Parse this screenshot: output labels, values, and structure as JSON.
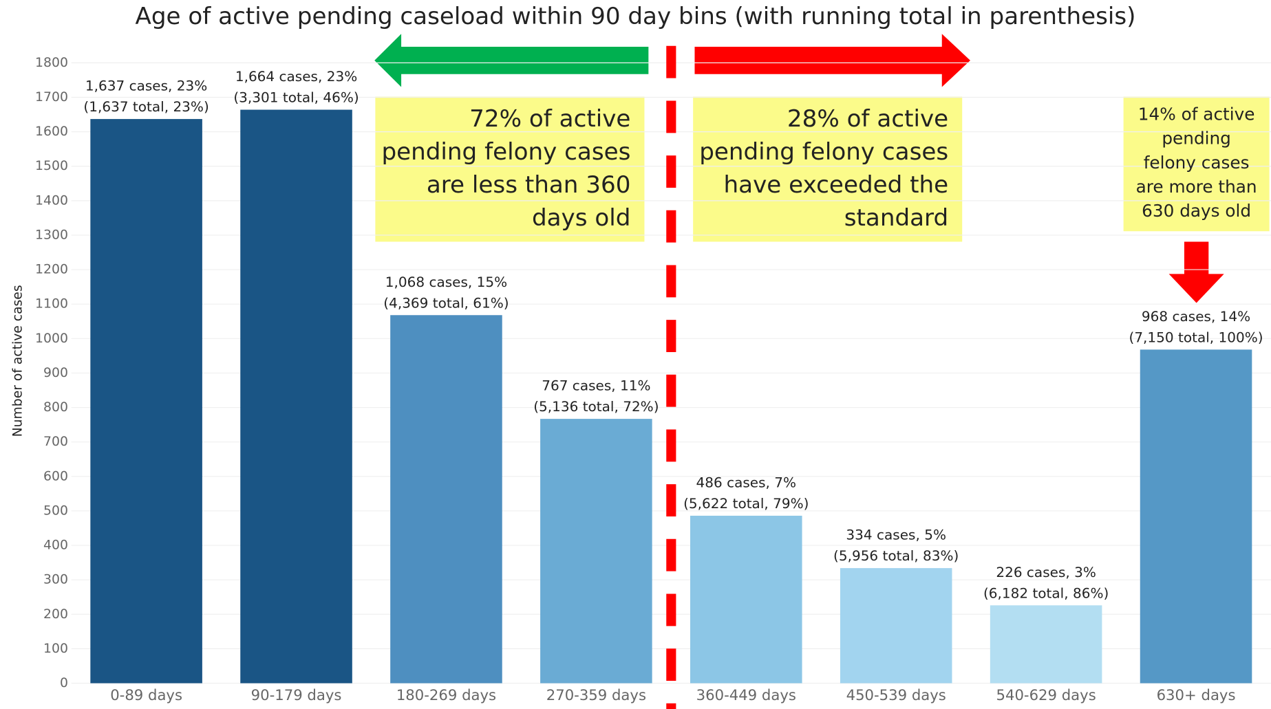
{
  "chart_data": {
    "type": "bar",
    "title": "Age of active pending caseload within 90 day bins (with running total in parenthesis)",
    "y_label": "Number of active cases",
    "categories": [
      "0-89 days",
      "90-179 days",
      "180-269 days",
      "270-359 days",
      "360-449 days",
      "450-539 days",
      "540-629 days",
      "630+ days"
    ],
    "values": [
      1637,
      1664,
      1068,
      767,
      486,
      334,
      226,
      968
    ],
    "value_labels": [
      [
        "1,637 cases, 23%",
        "(1,637 total, 23%)"
      ],
      [
        "1,664 cases, 23%",
        "(3,301 total, 46%)"
      ],
      [
        "1,068 cases, 15%",
        "(4,369 total, 61%)"
      ],
      [
        "767 cases, 11%",
        "(5,136 total, 72%)"
      ],
      [
        "486 cases, 7%",
        "(5,622 total, 79%)"
      ],
      [
        "334 cases, 5%",
        "(5,956 total, 83%)"
      ],
      [
        "226 cases, 3%",
        "(6,182 total, 86%)"
      ],
      [
        "968 cases, 14%",
        "(7,150 total, 100%)"
      ]
    ],
    "colors": [
      "#1a5585",
      "#1a5585",
      "#4e8fc0",
      "#6aabd4",
      "#8cc6e6",
      "#a2d4ef",
      "#b3def2",
      "#5598c6"
    ],
    "ylim": [
      0,
      1800
    ],
    "yticks": [
      0,
      100,
      200,
      300,
      400,
      500,
      600,
      700,
      800,
      900,
      1000,
      1100,
      1200,
      1300,
      1400,
      1500,
      1600,
      1700,
      1800
    ],
    "grid": true,
    "annotations": [
      {
        "lines": [
          "72% of active",
          "pending felony cases",
          "are less than 360",
          "days old"
        ]
      },
      {
        "lines": [
          "28% of active",
          "pending felony cases",
          "have exceeded the",
          "standard"
        ]
      },
      {
        "lines": [
          "14% of active",
          "pending",
          "felony cases",
          "are more than",
          "630 days old"
        ]
      }
    ]
  }
}
